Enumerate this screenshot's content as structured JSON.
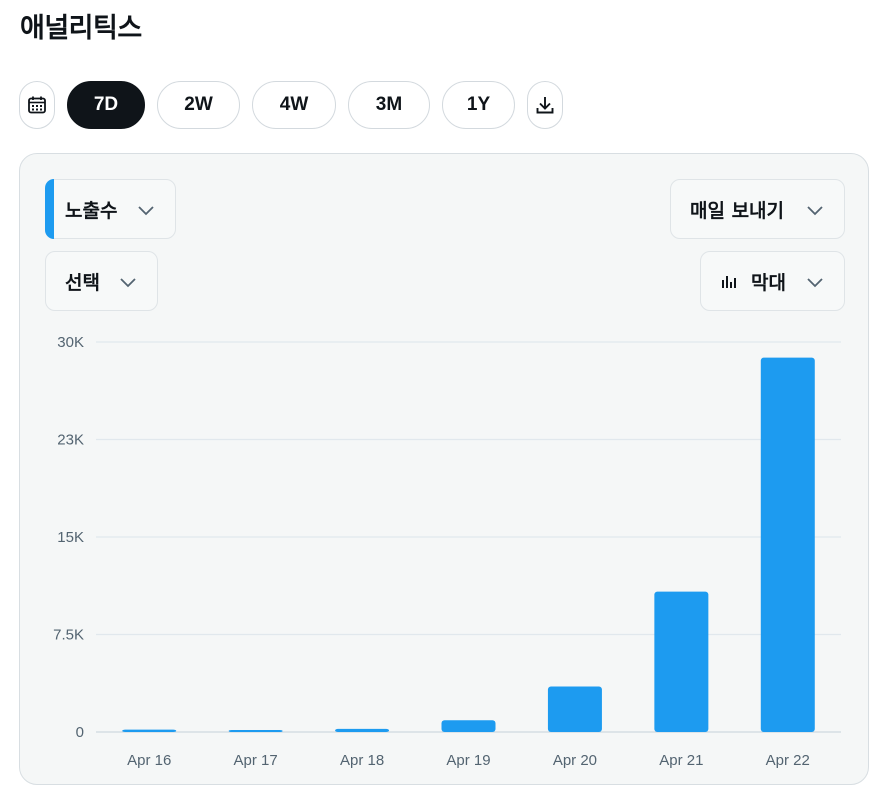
{
  "page": {
    "title": "애널리틱스"
  },
  "range": {
    "options": [
      "7D",
      "2W",
      "4W",
      "3M",
      "1Y"
    ],
    "selected": "7D",
    "calendar_icon": "calendar-icon",
    "download_icon": "download-icon"
  },
  "controls": {
    "metric": "노출수",
    "compare": "선택",
    "interval": "매일 보내기",
    "chart_style": "막대",
    "chart_style_icon": "bar-chart-icon"
  },
  "colors": {
    "accent": "#1d9bf0",
    "selected_pill": "#0f1419",
    "bar": "#1d9bf0"
  },
  "chart_data": {
    "type": "bar",
    "categories": [
      "Apr 16",
      "Apr 17",
      "Apr 18",
      "Apr 19",
      "Apr 20",
      "Apr 21",
      "Apr 22"
    ],
    "values": [
      180,
      120,
      240,
      900,
      3500,
      10800,
      28800
    ],
    "ylim": [
      0,
      30000
    ],
    "yticks": [
      0,
      7500,
      15000,
      22500,
      30000
    ],
    "ytick_labels": [
      "0",
      "7.5K",
      "15K",
      "23K",
      "30K"
    ],
    "grid": true
  }
}
